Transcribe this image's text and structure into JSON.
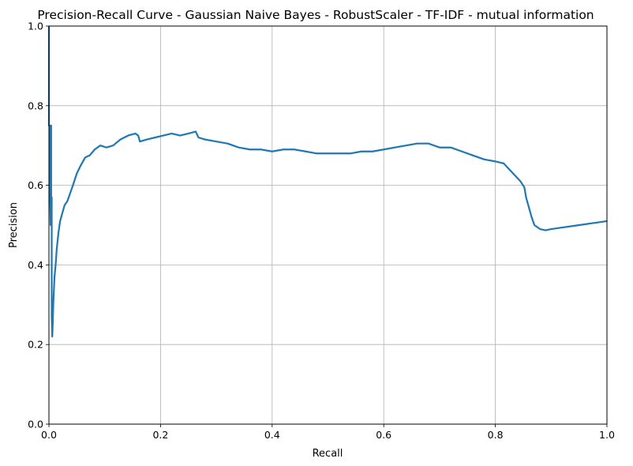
{
  "chart_data": {
    "type": "line",
    "title": "Precision-Recall Curve - Gaussian Naive Bayes - RobustScaler - TF-IDF - mutual information",
    "xlabel": "Recall",
    "ylabel": "Precision",
    "xlim": [
      0,
      1
    ],
    "ylim": [
      0,
      1
    ],
    "xticks": [
      "0.0",
      "0.2",
      "0.4",
      "0.6",
      "0.8",
      "1.0"
    ],
    "yticks": [
      "0.0",
      "0.2",
      "0.4",
      "0.6",
      "0.8",
      "1.0"
    ],
    "grid": true,
    "line_color": "#1f77b4",
    "series": [
      {
        "x": [
          0.0,
          0.0,
          0.001,
          0.002,
          0.003,
          0.003,
          0.004,
          0.004,
          0.005,
          0.005,
          0.006,
          0.007,
          0.008,
          0.009,
          0.01,
          0.012,
          0.014,
          0.017,
          0.02,
          0.024,
          0.028,
          0.033,
          0.038,
          0.043,
          0.05,
          0.057,
          0.065,
          0.073,
          0.082,
          0.092,
          0.103,
          0.115,
          0.128,
          0.142,
          0.155,
          0.16,
          0.163,
          0.175,
          0.19,
          0.205,
          0.22,
          0.235,
          0.25,
          0.263,
          0.268,
          0.28,
          0.3,
          0.32,
          0.34,
          0.36,
          0.38,
          0.4,
          0.42,
          0.44,
          0.46,
          0.48,
          0.5,
          0.52,
          0.54,
          0.56,
          0.58,
          0.6,
          0.62,
          0.64,
          0.66,
          0.68,
          0.7,
          0.72,
          0.74,
          0.76,
          0.78,
          0.8,
          0.815,
          0.825,
          0.835,
          0.845,
          0.852,
          0.855,
          0.86,
          0.865,
          0.87,
          0.88,
          0.89,
          0.9,
          0.95,
          1.0
        ],
        "y": [
          1.0,
          0.75,
          0.75,
          0.58,
          0.5,
          0.75,
          0.75,
          0.55,
          0.57,
          0.27,
          0.22,
          0.26,
          0.31,
          0.34,
          0.37,
          0.4,
          0.44,
          0.48,
          0.51,
          0.53,
          0.55,
          0.56,
          0.58,
          0.6,
          0.63,
          0.65,
          0.67,
          0.675,
          0.69,
          0.7,
          0.695,
          0.7,
          0.715,
          0.725,
          0.73,
          0.725,
          0.71,
          0.715,
          0.72,
          0.725,
          0.73,
          0.725,
          0.73,
          0.735,
          0.72,
          0.715,
          0.71,
          0.705,
          0.695,
          0.69,
          0.69,
          0.685,
          0.69,
          0.69,
          0.685,
          0.68,
          0.68,
          0.68,
          0.68,
          0.685,
          0.685,
          0.69,
          0.695,
          0.7,
          0.705,
          0.705,
          0.695,
          0.695,
          0.685,
          0.675,
          0.665,
          0.66,
          0.655,
          0.64,
          0.625,
          0.61,
          0.595,
          0.57,
          0.545,
          0.52,
          0.5,
          0.49,
          0.487,
          0.49,
          0.5,
          0.51
        ]
      }
    ]
  }
}
